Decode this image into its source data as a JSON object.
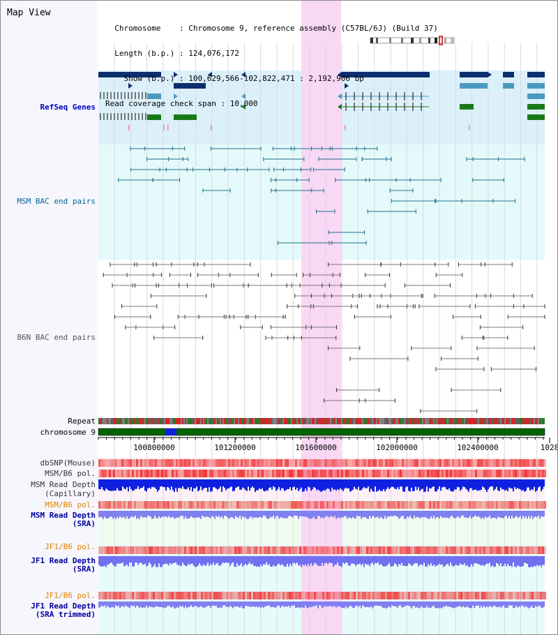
{
  "header": {
    "title": "Map View",
    "info_lines": [
      "  Chromosome    : Chromosome 9, reference assembly (C57BL/6J) (Build 37)",
      "  Length (b.p.) : 124,076,172",
      "    Show (b.p.) : 100,629,566-102,822,471 : 2,192,906 bp",
      "Read coverage check span : 10,000"
    ]
  },
  "track_labels": {
    "refseq": "RefSeq Genes",
    "msm_bac": "MSM BAC end pairs",
    "b6n_bac": "B6N BAC end pairs",
    "repeat": "Repeat",
    "chromosome": "chromosome 9",
    "dbsnp": "dbSNP(Mouse)",
    "msm_b6_pol_1": "MSM/B6 pol.",
    "msm_read_depth_cap_1": "MSM Read Depth",
    "msm_read_depth_cap_2": "(Capillary)",
    "msm_b6_pol_2": "MSM/B6 pol.",
    "msm_read_depth_sra_1": "MSM Read Depth",
    "msm_read_depth_sra_2": "(SRA)",
    "jf1_b6_pol_1": "JF1/B6 pol.",
    "jf1_read_depth_sra_1": "JF1 Read Depth",
    "jf1_read_depth_sra_2": "(SRA)",
    "jf1_b6_pol_2": "JF1/B6 pol.",
    "jf1_read_depth_trim_1": "JF1 Read Depth",
    "jf1_read_depth_trim_2": "(SRA trimmed)"
  },
  "axis": {
    "ticks": [
      "100800000",
      "101200000",
      "101600000",
      "102000000",
      "102400000",
      "1028"
    ]
  },
  "colors": {
    "refseq_label": "#0000c0",
    "msm_label": "#006699",
    "b6n_label": "#555555",
    "orange_label": "#e08000",
    "highlight": "#f8d8f4",
    "refseq_bg": "#dcf0fa",
    "msm_bg": "#e4fafa",
    "gene_dark": "#0d2f6e",
    "gene_mid": "#4a9ac0",
    "gene_green": "#1a7a1a",
    "msm_pair": "#1e6f8a",
    "b6n_pair": "#7a7a7a",
    "depth_cap": "#1020e0",
    "depth_sra": "#8080f0"
  }
}
